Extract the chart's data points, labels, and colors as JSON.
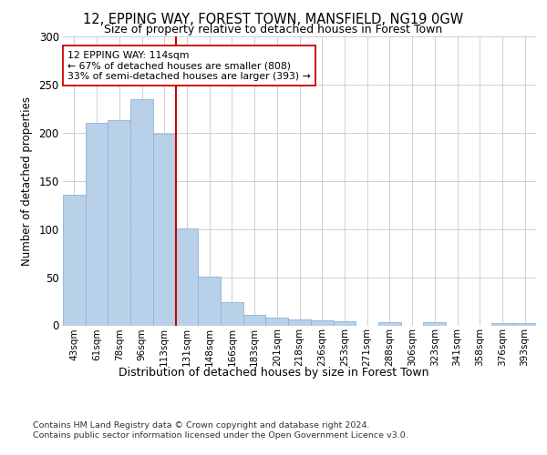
{
  "title": "12, EPPING WAY, FOREST TOWN, MANSFIELD, NG19 0GW",
  "subtitle": "Size of property relative to detached houses in Forest Town",
  "xlabel": "Distribution of detached houses by size in Forest Town",
  "ylabel": "Number of detached properties",
  "categories": [
    "43sqm",
    "61sqm",
    "78sqm",
    "96sqm",
    "113sqm",
    "131sqm",
    "148sqm",
    "166sqm",
    "183sqm",
    "201sqm",
    "218sqm",
    "236sqm",
    "253sqm",
    "271sqm",
    "288sqm",
    "306sqm",
    "323sqm",
    "341sqm",
    "358sqm",
    "376sqm",
    "393sqm"
  ],
  "values": [
    136,
    210,
    213,
    235,
    199,
    101,
    51,
    24,
    11,
    8,
    6,
    5,
    4,
    0,
    3,
    0,
    3,
    0,
    0,
    2,
    2
  ],
  "bar_color": "#b8d0e8",
  "bar_edge_color": "#90b4d4",
  "vline_x_index": 4,
  "annotation_text": "12 EPPING WAY: 114sqm\n← 67% of detached houses are smaller (808)\n33% of semi-detached houses are larger (393) →",
  "annotation_box_color": "#ffffff",
  "annotation_box_edge_color": "#cc0000",
  "vline_color": "#cc0000",
  "footer1": "Contains HM Land Registry data © Crown copyright and database right 2024.",
  "footer2": "Contains public sector information licensed under the Open Government Licence v3.0.",
  "ylim": [
    0,
    300
  ],
  "yticks": [
    0,
    50,
    100,
    150,
    200,
    250,
    300
  ],
  "background_color": "#ffffff",
  "grid_color": "#d0d0d0"
}
